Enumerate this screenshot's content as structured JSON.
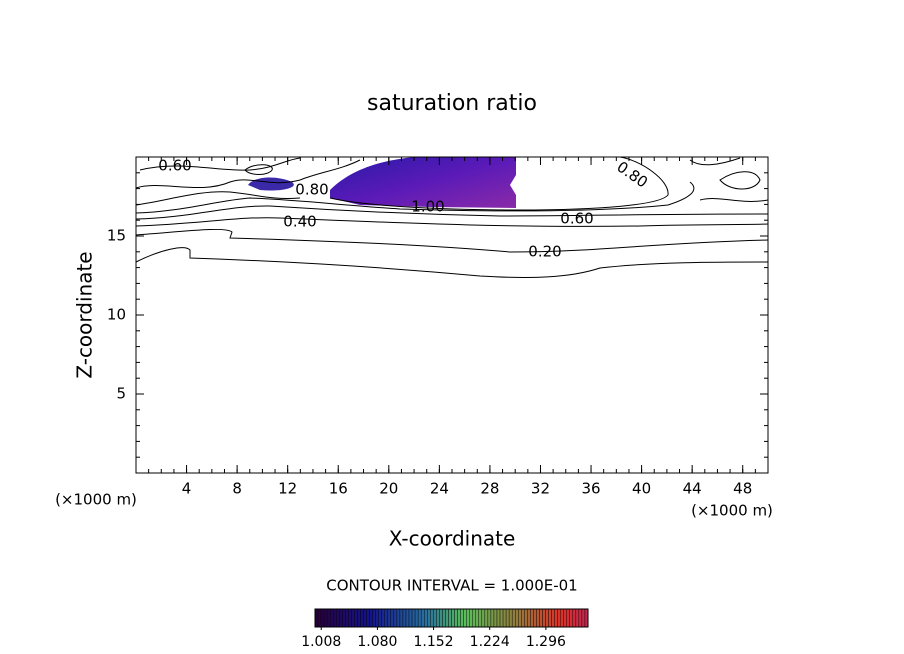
{
  "chart_data": {
    "type": "contour",
    "title": "saturation ratio",
    "x_label": "X-coordinate",
    "y_label": "Z-coordinate",
    "x_unit": "(×1000 m)",
    "y_unit": "(×1000 m)",
    "xlim": [
      0,
      50
    ],
    "xticks": [
      4,
      8,
      12,
      16,
      20,
      24,
      28,
      32,
      36,
      40,
      44,
      48
    ],
    "ylim": [
      0,
      20
    ],
    "yticks": [
      5,
      10,
      15
    ],
    "note": "CONTOUR INTERVAL = 1.000E-01",
    "contour_labels": [
      {
        "value": 0.6,
        "label": "0.60"
      },
      {
        "value": 0.8,
        "label": "0.80"
      },
      {
        "value": 0.4,
        "label": "0.40"
      },
      {
        "value": 1.0,
        "label": "1.00"
      },
      {
        "value": 0.6,
        "label": "0.60"
      },
      {
        "value": 0.8,
        "label": "0.80"
      },
      {
        "value": 0.2,
        "label": "0.20"
      }
    ],
    "colorbar": {
      "clim": [
        1.0,
        1.35
      ],
      "ticks": [
        1.008,
        {
          "value": 1.08,
          "label": "1.080"
        },
        1.152,
        1.224,
        1.296
      ]
    }
  }
}
